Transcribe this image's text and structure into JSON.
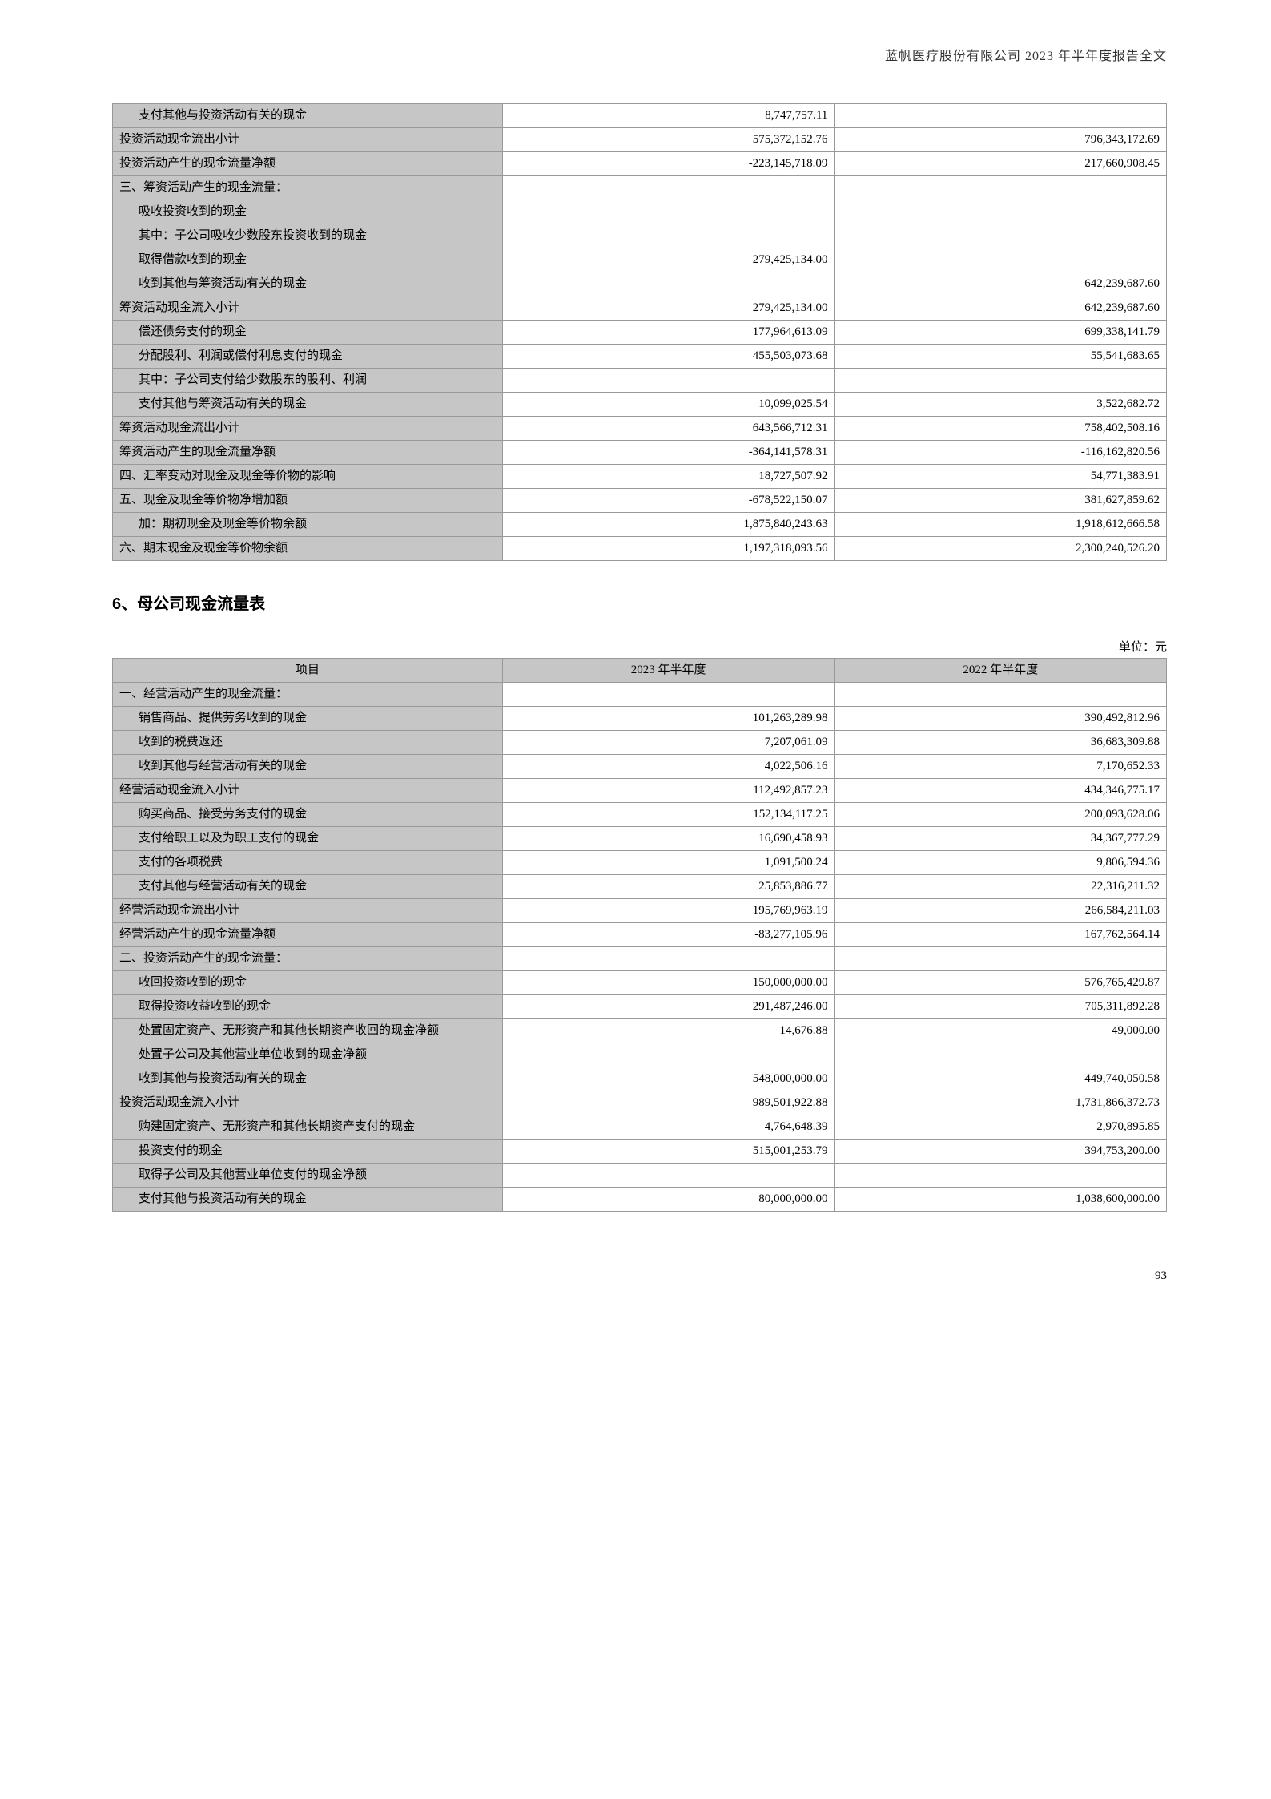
{
  "header_text": "蓝帆医疗股份有限公司 2023 年半年度报告全文",
  "page_number": "93",
  "section_title": "6、母公司现金流量表",
  "unit_text": "单位：元",
  "table1": {
    "rows": [
      {
        "label": "支付其他与投资活动有关的现金",
        "indent": true,
        "c1": "8,747,757.11",
        "c2": ""
      },
      {
        "label": "投资活动现金流出小计",
        "indent": false,
        "c1": "575,372,152.76",
        "c2": "796,343,172.69"
      },
      {
        "label": "投资活动产生的现金流量净额",
        "indent": false,
        "c1": "-223,145,718.09",
        "c2": "217,660,908.45"
      },
      {
        "label": "三、筹资活动产生的现金流量：",
        "indent": false,
        "c1": "",
        "c2": ""
      },
      {
        "label": "吸收投资收到的现金",
        "indent": true,
        "c1": "",
        "c2": ""
      },
      {
        "label": "其中：子公司吸收少数股东投资收到的现金",
        "indent": true,
        "c1": "",
        "c2": ""
      },
      {
        "label": "取得借款收到的现金",
        "indent": true,
        "c1": "279,425,134.00",
        "c2": ""
      },
      {
        "label": "收到其他与筹资活动有关的现金",
        "indent": true,
        "c1": "",
        "c2": "642,239,687.60"
      },
      {
        "label": "筹资活动现金流入小计",
        "indent": false,
        "c1": "279,425,134.00",
        "c2": "642,239,687.60"
      },
      {
        "label": "偿还债务支付的现金",
        "indent": true,
        "c1": "177,964,613.09",
        "c2": "699,338,141.79"
      },
      {
        "label": "分配股利、利润或偿付利息支付的现金",
        "indent": true,
        "c1": "455,503,073.68",
        "c2": "55,541,683.65"
      },
      {
        "label": "其中：子公司支付给少数股东的股利、利润",
        "indent": true,
        "c1": "",
        "c2": ""
      },
      {
        "label": "支付其他与筹资活动有关的现金",
        "indent": true,
        "c1": "10,099,025.54",
        "c2": "3,522,682.72"
      },
      {
        "label": "筹资活动现金流出小计",
        "indent": false,
        "c1": "643,566,712.31",
        "c2": "758,402,508.16"
      },
      {
        "label": "筹资活动产生的现金流量净额",
        "indent": false,
        "c1": "-364,141,578.31",
        "c2": "-116,162,820.56"
      },
      {
        "label": "四、汇率变动对现金及现金等价物的影响",
        "indent": false,
        "c1": "18,727,507.92",
        "c2": "54,771,383.91"
      },
      {
        "label": "五、现金及现金等价物净增加额",
        "indent": false,
        "c1": "-678,522,150.07",
        "c2": "381,627,859.62"
      },
      {
        "label": "加：期初现金及现金等价物余额",
        "indent": true,
        "c1": "1,875,840,243.63",
        "c2": "1,918,612,666.58"
      },
      {
        "label": "六、期末现金及现金等价物余额",
        "indent": false,
        "c1": "1,197,318,093.56",
        "c2": "2,300,240,526.20"
      }
    ]
  },
  "table2": {
    "headers": [
      "项目",
      "2023 年半年度",
      "2022 年半年度"
    ],
    "rows": [
      {
        "label": "一、经营活动产生的现金流量：",
        "indent": false,
        "c1": "",
        "c2": ""
      },
      {
        "label": "销售商品、提供劳务收到的现金",
        "indent": true,
        "c1": "101,263,289.98",
        "c2": "390,492,812.96"
      },
      {
        "label": "收到的税费返还",
        "indent": true,
        "c1": "7,207,061.09",
        "c2": "36,683,309.88"
      },
      {
        "label": "收到其他与经营活动有关的现金",
        "indent": true,
        "c1": "4,022,506.16",
        "c2": "7,170,652.33"
      },
      {
        "label": "经营活动现金流入小计",
        "indent": false,
        "c1": "112,492,857.23",
        "c2": "434,346,775.17"
      },
      {
        "label": "购买商品、接受劳务支付的现金",
        "indent": true,
        "c1": "152,134,117.25",
        "c2": "200,093,628.06"
      },
      {
        "label": "支付给职工以及为职工支付的现金",
        "indent": true,
        "c1": "16,690,458.93",
        "c2": "34,367,777.29"
      },
      {
        "label": "支付的各项税费",
        "indent": true,
        "c1": "1,091,500.24",
        "c2": "9,806,594.36"
      },
      {
        "label": "支付其他与经营活动有关的现金",
        "indent": true,
        "c1": "25,853,886.77",
        "c2": "22,316,211.32"
      },
      {
        "label": "经营活动现金流出小计",
        "indent": false,
        "c1": "195,769,963.19",
        "c2": "266,584,211.03"
      },
      {
        "label": "经营活动产生的现金流量净额",
        "indent": false,
        "c1": "-83,277,105.96",
        "c2": "167,762,564.14"
      },
      {
        "label": "二、投资活动产生的现金流量：",
        "indent": false,
        "c1": "",
        "c2": ""
      },
      {
        "label": "收回投资收到的现金",
        "indent": true,
        "c1": "150,000,000.00",
        "c2": "576,765,429.87"
      },
      {
        "label": "取得投资收益收到的现金",
        "indent": true,
        "c1": "291,487,246.00",
        "c2": "705,311,892.28"
      },
      {
        "label": "处置固定资产、无形资产和其他长期资产收回的现金净额",
        "indent": true,
        "c1": "14,676.88",
        "c2": "49,000.00"
      },
      {
        "label": "处置子公司及其他营业单位收到的现金净额",
        "indent": true,
        "c1": "",
        "c2": ""
      },
      {
        "label": "收到其他与投资活动有关的现金",
        "indent": true,
        "c1": "548,000,000.00",
        "c2": "449,740,050.58"
      },
      {
        "label": "投资活动现金流入小计",
        "indent": false,
        "c1": "989,501,922.88",
        "c2": "1,731,866,372.73"
      },
      {
        "label": "购建固定资产、无形资产和其他长期资产支付的现金",
        "indent": true,
        "c1": "4,764,648.39",
        "c2": "2,970,895.85"
      },
      {
        "label": "投资支付的现金",
        "indent": true,
        "c1": "515,001,253.79",
        "c2": "394,753,200.00"
      },
      {
        "label": "取得子公司及其他营业单位支付的现金净额",
        "indent": true,
        "c1": "",
        "c2": ""
      },
      {
        "label": "支付其他与投资活动有关的现金",
        "indent": true,
        "c1": "80,000,000.00",
        "c2": "1,038,600,000.00"
      }
    ]
  }
}
